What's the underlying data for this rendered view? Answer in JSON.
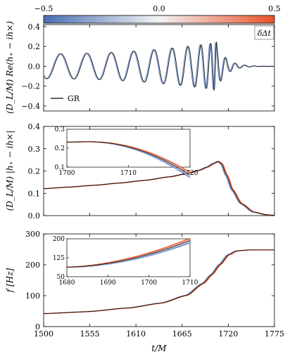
{
  "colorbar": {
    "tick_labels": [
      "−0.5",
      "0.0",
      "0.5"
    ],
    "range": [
      -0.5,
      0.5
    ],
    "label": "δΔt",
    "colors": {
      "low": "#4a6fb5",
      "mid": "#f3f3f3",
      "high": "#e8532b"
    }
  },
  "x_tick_labels": [
    "1500",
    "1555",
    "1610",
    "1665",
    "1720",
    "1775"
  ],
  "x_axis_label": "t/M",
  "chart_data": [
    {
      "type": "line",
      "panel": "top",
      "ylabel": "(D_L/M) Re(h₊ − ih×)",
      "xlim": [
        1500,
        1775
      ],
      "ylim": [
        -0.45,
        0.42
      ],
      "y_tick_labels": [
        "0.4",
        "0.2",
        "0.0",
        "−0.2",
        "−0.4"
      ],
      "legend": {
        "label": "GR",
        "placement": "bottom-left"
      },
      "series_colors": [
        "#5a7fc0",
        "#a9bde0",
        "#f0a585",
        "#e8532b"
      ],
      "gr_color": "#000000"
    },
    {
      "type": "line",
      "panel": "middle",
      "ylabel": "(D_L/M) |h₊ − ih×|",
      "xlim": [
        1500,
        1775
      ],
      "ylim": [
        0,
        0.4
      ],
      "y_tick_labels": [
        "0.4",
        "0.3",
        "0.2",
        "0.1",
        "0.0"
      ],
      "x": [
        1500,
        1530,
        1560,
        1590,
        1620,
        1650,
        1670,
        1685,
        1695,
        1703,
        1708,
        1712,
        1718,
        1725,
        1735,
        1750,
        1765,
        1775
      ],
      "values": [
        0.121,
        0.128,
        0.136,
        0.146,
        0.158,
        0.174,
        0.188,
        0.203,
        0.218,
        0.235,
        0.243,
        0.232,
        0.18,
        0.115,
        0.055,
        0.016,
        0.004,
        0.001
      ],
      "inset": {
        "xlim": [
          1700,
          1720
        ],
        "ylim": [
          0.1,
          0.3
        ],
        "x_tick_labels": [
          "1700",
          "1710",
          "1720"
        ],
        "y_tick_labels": [
          "0.3",
          "0.2",
          "0.1"
        ]
      }
    },
    {
      "type": "line",
      "panel": "bottom",
      "ylabel": "f [Hz]",
      "xlim": [
        1500,
        1775
      ],
      "ylim": [
        0,
        300
      ],
      "y_tick_labels": [
        "300",
        "200",
        "100",
        "0"
      ],
      "x": [
        1500,
        1550,
        1600,
        1640,
        1670,
        1690,
        1700,
        1710,
        1720,
        1730,
        1745,
        1775
      ],
      "values": [
        42,
        48,
        60,
        76,
        101,
        140,
        168,
        201,
        232,
        245,
        248,
        248
      ],
      "inset": {
        "xlim": [
          1680,
          1710
        ],
        "ylim": [
          50,
          200
        ],
        "x_tick_labels": [
          "1680",
          "1690",
          "1700",
          "1710"
        ],
        "y_tick_labels": [
          "200",
          "125",
          "50"
        ]
      }
    }
  ]
}
